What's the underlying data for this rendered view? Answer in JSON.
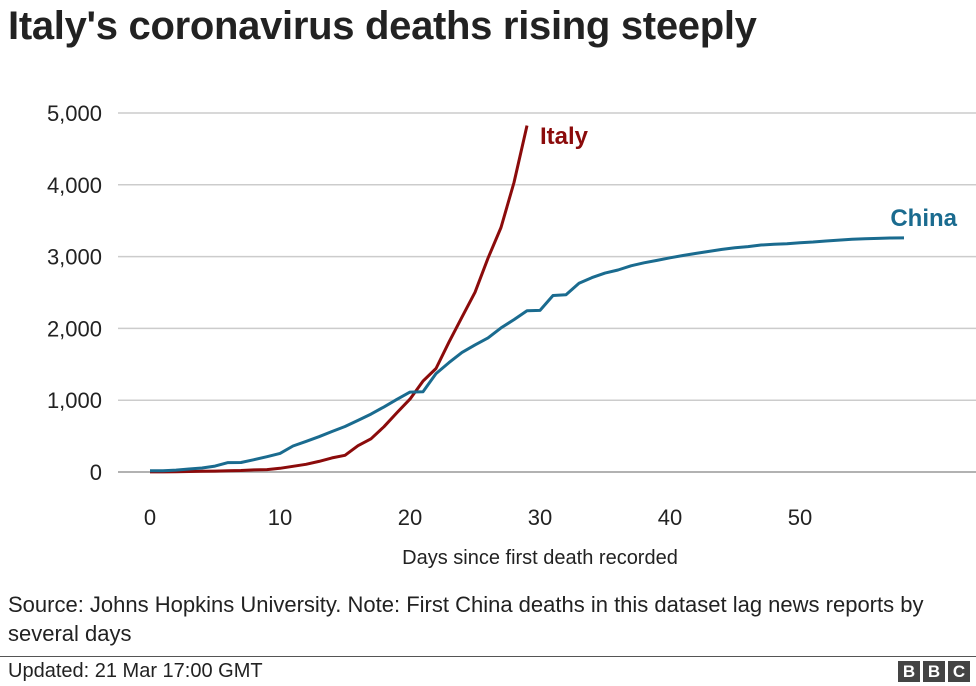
{
  "title": "Italy's coronavirus deaths rising steeply",
  "source": "Source: Johns Hopkins University. Note: First China deaths in this dataset lag news reports by several days",
  "updated": "Updated: 21 Mar 17:00 GMT",
  "logo": "BBC",
  "chart_data": {
    "type": "line",
    "title": "Italy's coronavirus deaths rising steeply",
    "xlabel": "Days since first death recorded",
    "ylabel": "",
    "xlim": [
      0,
      63
    ],
    "ylim": [
      0,
      5000
    ],
    "xticks": [
      0,
      10,
      20,
      30,
      40,
      50
    ],
    "yticks": [
      0,
      1000,
      2000,
      3000,
      4000,
      5000
    ],
    "ytick_labels": [
      "0",
      "1,000",
      "2,000",
      "3,000",
      "4,000",
      "5,000"
    ],
    "grid": "horizontal",
    "series": [
      {
        "name": "Italy",
        "color": "#8b0b0b",
        "values": [
          1,
          2,
          3,
          7,
          10,
          12,
          17,
          21,
          29,
          34,
          52,
          79,
          107,
          148,
          197,
          233,
          366,
          463,
          631,
          827,
          1016,
          1266,
          1441,
          1809,
          2158,
          2503,
          2978,
          3405,
          4032,
          4825
        ]
      },
      {
        "name": "China",
        "color": "#1a6b8f",
        "values": [
          17,
          18,
          26,
          42,
          56,
          82,
          131,
          133,
          171,
          213,
          259,
          362,
          426,
          492,
          564,
          634,
          719,
          806,
          906,
          1013,
          1113,
          1118,
          1371,
          1523,
          1666,
          1770,
          1868,
          2007,
          2122,
          2247,
          2251,
          2458,
          2469,
          2629,
          2708,
          2770,
          2814,
          2872,
          2914,
          2947,
          2983,
          3015,
          3044,
          3072,
          3100,
          3123,
          3139,
          3161,
          3172,
          3180,
          3193,
          3203,
          3217,
          3230,
          3241,
          3249,
          3253,
          3259,
          3261
        ]
      }
    ]
  }
}
